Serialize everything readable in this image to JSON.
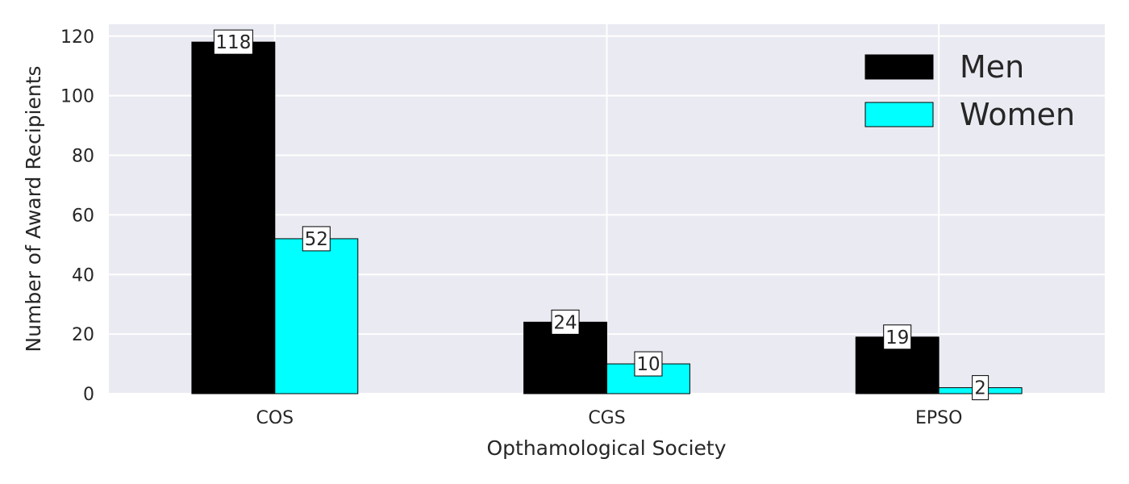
{
  "chart_data": {
    "type": "bar",
    "categories": [
      "COS",
      "CGS",
      "EPSO"
    ],
    "series": [
      {
        "name": "Men",
        "values": [
          118,
          24,
          19
        ],
        "color": "#000000"
      },
      {
        "name": "Women",
        "values": [
          52,
          10,
          2
        ],
        "color": "#00ffff"
      }
    ],
    "xlabel": "Opthamological Society",
    "ylabel": "Number of Award Recipients",
    "ylim": [
      0,
      124
    ],
    "yticks": [
      0,
      20,
      40,
      60,
      80,
      100,
      120
    ],
    "grid": true,
    "legend_position": "top-right",
    "colors": {
      "plot_background": "#eaeaf2",
      "grid": "#ffffff",
      "text": "#262626"
    }
  }
}
